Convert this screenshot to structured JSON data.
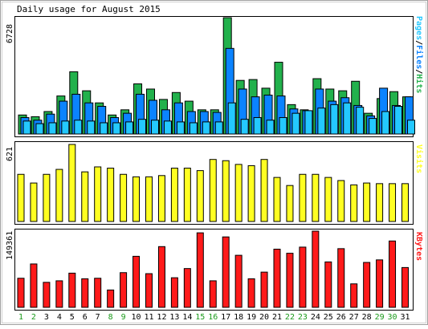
{
  "title": "Daily usage for August 2015",
  "colors": {
    "hits": "#22b14c",
    "files": "#0b83ff",
    "pages": "#24c8ff",
    "visits": "#ffff22",
    "kbytes": "#ff1a1a",
    "weekday_label": "#000000",
    "weekend_label": "#1a9a1a",
    "frame": "#000000"
  },
  "panels": {
    "hits": {
      "max_label": "6728",
      "legend": [
        "Pages",
        "/",
        "Files",
        "/",
        "Hits"
      ]
    },
    "visits": {
      "max_label": "621",
      "legend": [
        "Visits"
      ]
    },
    "kbytes": {
      "max_label": "149361",
      "legend": [
        "KBytes"
      ]
    }
  },
  "chart_data": {
    "type": "bar",
    "title": "Daily usage for August 2015",
    "categories": [
      "1",
      "2",
      "3",
      "4",
      "5",
      "6",
      "7",
      "8",
      "9",
      "10",
      "11",
      "12",
      "13",
      "14",
      "15",
      "16",
      "17",
      "18",
      "19",
      "20",
      "21",
      "22",
      "23",
      "24",
      "25",
      "26",
      "27",
      "28",
      "29",
      "30",
      "31"
    ],
    "weekend_days": [
      "1",
      "2",
      "8",
      "9",
      "15",
      "16",
      "22",
      "23",
      "29",
      "30"
    ],
    "panels": [
      {
        "name": "hits-panel",
        "max": 6728,
        "series": [
          {
            "name": "Hits",
            "values": [
              1100,
              1000,
              1300,
              2200,
              3600,
              2500,
              1800,
              1100,
              1400,
              2900,
              2600,
              2000,
              2400,
              1900,
              1400,
              1400,
              6728,
              3100,
              3150,
              2650,
              4150,
              1700,
              1400,
              3200,
              2600,
              2500,
              3050,
              1200,
              2050,
              2450,
              2150
            ]
          },
          {
            "name": "Files",
            "values": [
              950,
              800,
              1150,
              1900,
              2300,
              1800,
              1600,
              950,
              1200,
              2300,
              1950,
              1400,
              1800,
              1300,
              1300,
              1250,
              4950,
              2600,
              2150,
              2250,
              2200,
              1450,
              1350,
              2600,
              1900,
              2100,
              1650,
              1050,
              2650,
              1650,
              2150
            ]
          },
          {
            "name": "Pages",
            "values": [
              750,
              600,
              650,
              750,
              800,
              750,
              650,
              650,
              700,
              850,
              800,
              750,
              700,
              650,
              700,
              700,
              1800,
              850,
              950,
              800,
              950,
              1200,
              1350,
              1500,
              1700,
              1800,
              1550,
              900,
              1300,
              1600,
              800
            ]
          }
        ]
      },
      {
        "name": "visits-panel",
        "max": 621,
        "series": [
          {
            "name": "Visits",
            "values": [
              380,
              310,
              380,
              420,
              621,
              400,
              440,
              430,
              380,
              360,
              360,
              370,
              430,
              430,
              410,
              500,
              490,
              460,
              450,
              500,
              355,
              290,
              380,
              380,
              355,
              330,
              295,
              310,
              305,
              305,
              305
            ]
          }
        ]
      },
      {
        "name": "kbytes-panel",
        "max": 149361,
        "series": [
          {
            "name": "KBytes",
            "values": [
              57000,
              85000,
              49000,
              52000,
              67000,
              56000,
              57000,
              34000,
              68000,
              100000,
              66000,
              119000,
              58000,
              76000,
              146000,
              52000,
              138000,
              102000,
              56000,
              69000,
              114000,
              106000,
              118000,
              149361,
              89000,
              115000,
              46000,
              88000,
              93000,
              130000,
              78000
            ]
          }
        ]
      }
    ]
  }
}
